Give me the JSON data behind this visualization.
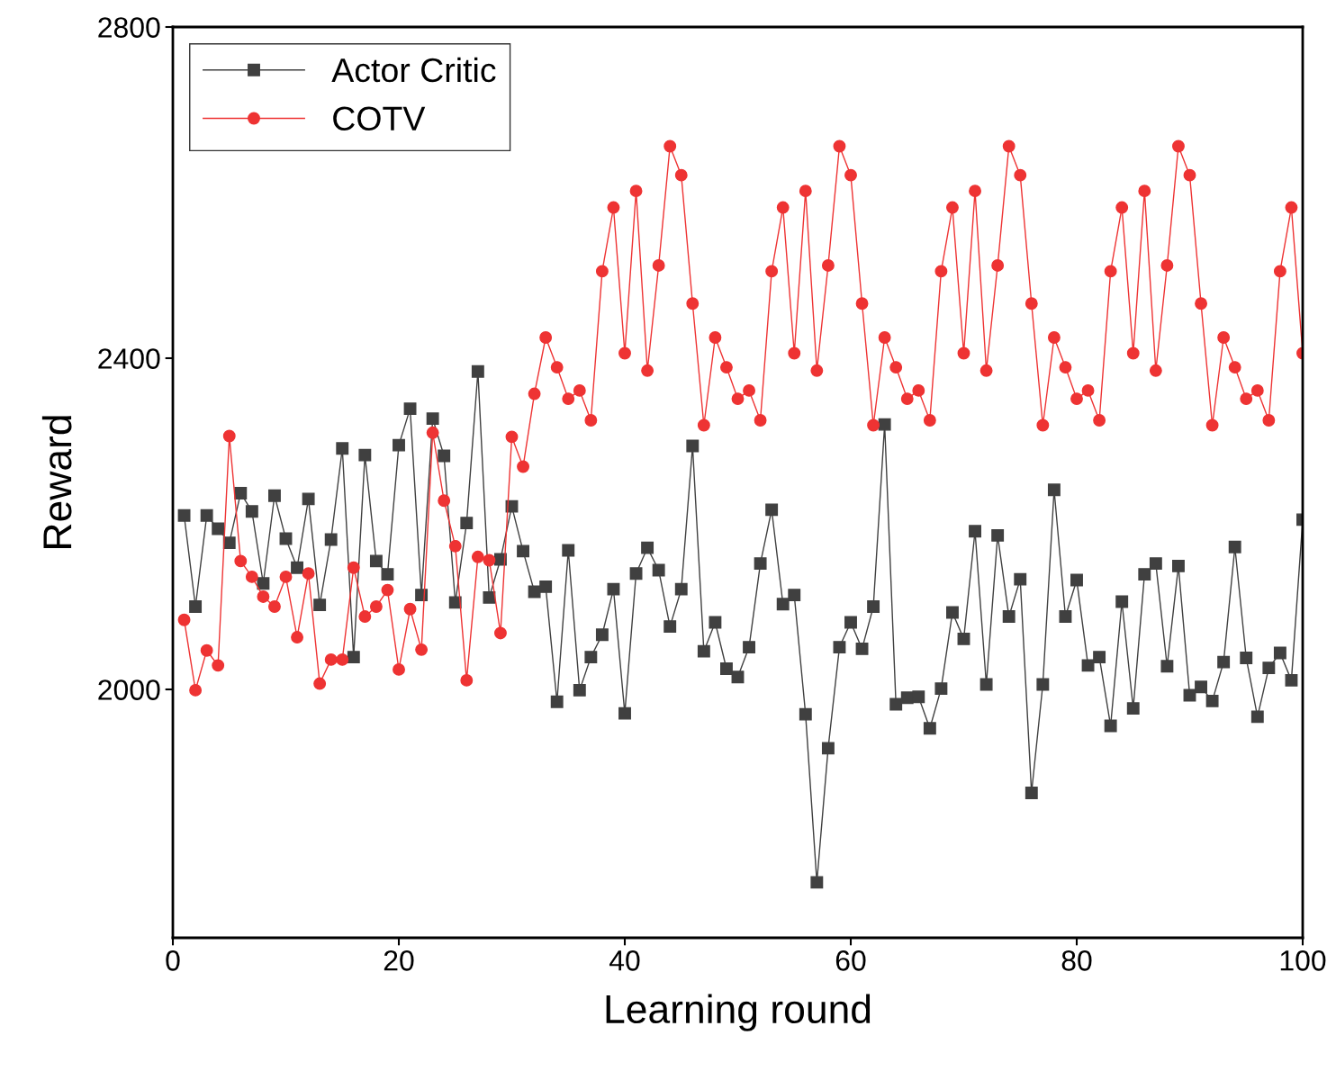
{
  "chart_data": {
    "type": "line",
    "xlabel": "Learning round",
    "ylabel": "Reward",
    "xlim": [
      0,
      100
    ],
    "xticks": [
      0,
      20,
      40,
      60,
      80,
      100
    ],
    "ylim": [
      1700,
      2800
    ],
    "yticks": [
      2000,
      2400,
      2800
    ],
    "grid": false,
    "legend": "top left",
    "line_style": "solid",
    "x": [
      1,
      2,
      3,
      4,
      5,
      6,
      7,
      8,
      9,
      10,
      11,
      12,
      13,
      14,
      15,
      16,
      17,
      18,
      19,
      20,
      21,
      22,
      23,
      24,
      25,
      26,
      27,
      28,
      29,
      30,
      31,
      32,
      33,
      34,
      35,
      36,
      37,
      38,
      39,
      40,
      41,
      42,
      43,
      44,
      45,
      46,
      47,
      48,
      49,
      50,
      51,
      52,
      53,
      54,
      55,
      56,
      57,
      58,
      59,
      60,
      61,
      62,
      63,
      64,
      65,
      66,
      67,
      68,
      69,
      70,
      71,
      72,
      73,
      74,
      75,
      76,
      77,
      78,
      79,
      80,
      81,
      82,
      83,
      84,
      85,
      86,
      87,
      88,
      89,
      90,
      91,
      92,
      93,
      94,
      95,
      96,
      97,
      98,
      99,
      100
    ],
    "series": [
      {
        "name": "Actor Critic",
        "color": "#404040",
        "marker": "square",
        "values": [
          2210,
          2100,
          2210,
          2194,
          2177,
          2237,
          2215,
          2128,
          2234,
          2182,
          2147,
          2230,
          2102,
          2181,
          2291,
          2039,
          2283,
          2155,
          2139,
          2295,
          2339,
          2114,
          2327,
          2282,
          2105,
          2201,
          2384,
          2111,
          2157,
          2221,
          2167,
          2118,
          2124,
          1985,
          2168,
          1999,
          2039,
          2066,
          2121,
          1971,
          2140,
          2171,
          2144,
          2076,
          2121,
          2294,
          2046,
          2081,
          2025,
          2015,
          2051,
          2152,
          2217,
          2103,
          2114,
          1970,
          1767,
          1929,
          2051,
          2081,
          2049,
          2100,
          2320,
          1982,
          1990,
          1991,
          1953,
          2001,
          2093,
          2061,
          2191,
          2006,
          2186,
          2088,
          2133,
          1875,
          2006,
          2241,
          2088,
          2132,
          2029,
          2039,
          1956,
          2106,
          1977,
          2139,
          2152,
          2028,
          2149,
          1993,
          2003,
          1986,
          2033,
          2172,
          2038,
          1967,
          2026,
          2044,
          2011,
          2205
        ]
      },
      {
        "name": "COTV",
        "color": "#ee3333",
        "marker": "circle",
        "values": [
          2084,
          1999,
          2047,
          2029,
          2306,
          2155,
          2136,
          2112,
          2100,
          2136,
          2063,
          2140,
          2007,
          2036,
          2036,
          2147,
          2088,
          2100,
          2120,
          2024,
          2097,
          2048,
          2310,
          2228,
          2173,
          2011,
          2160,
          2156,
          2068,
          2305,
          2269,
          2357,
          2425,
          2389,
          2351,
          2361,
          2325,
          2505,
          2582,
          2406,
          2602,
          2385,
          2512,
          2656,
          2621,
          2466,
          2319,
          2425,
          2389,
          2351,
          2361,
          2325,
          2505,
          2582,
          2406,
          2602,
          2385,
          2512,
          2656,
          2621,
          2466,
          2319,
          2425,
          2389,
          2351,
          2361,
          2325,
          2505,
          2582,
          2406,
          2602,
          2385,
          2512,
          2656,
          2621,
          2466,
          2319,
          2425,
          2389,
          2351,
          2361,
          2325,
          2505,
          2582,
          2406,
          2602,
          2385,
          2512,
          2656,
          2621,
          2466,
          2319,
          2425,
          2389,
          2351,
          2361,
          2325,
          2505,
          2582,
          2406
        ]
      }
    ]
  }
}
